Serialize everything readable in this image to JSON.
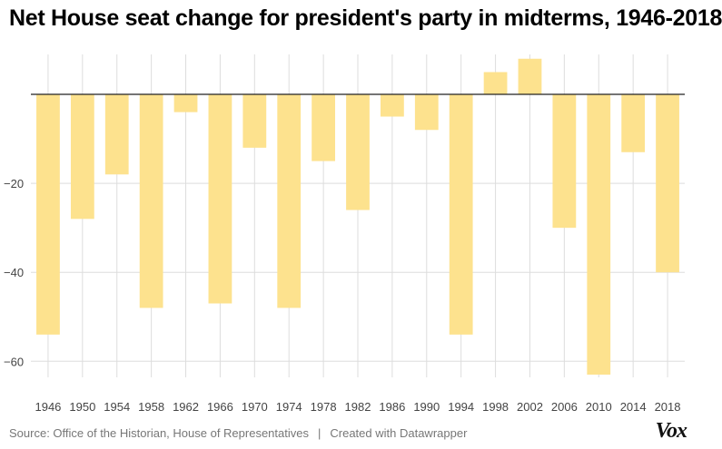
{
  "title": "Net House seat change for president's party in midterms, 1946-2018",
  "footer": {
    "source": "Source: Office of the Historian, House of Representatives",
    "separator": "|",
    "credit": "Created with Datawrapper"
  },
  "logo": "Vox",
  "colors": {
    "bar": "#fde28e",
    "grid": "#dddddd",
    "baseline": "#222222",
    "tick_text": "#444444"
  },
  "chart_data": {
    "type": "bar",
    "categories": [
      "1946",
      "1950",
      "1954",
      "1958",
      "1962",
      "1966",
      "1970",
      "1974",
      "1978",
      "1982",
      "1986",
      "1990",
      "1994",
      "1998",
      "2002",
      "2006",
      "2010",
      "2014",
      "2018"
    ],
    "values": [
      -54,
      -28,
      -18,
      -48,
      -4,
      -47,
      -12,
      -48,
      -15,
      -26,
      -5,
      -8,
      -54,
      5,
      8,
      -30,
      -63,
      -13,
      -40
    ],
    "title": "Net House seat change for president's party in midterms, 1946-2018",
    "xlabel": "",
    "ylabel": "",
    "ylim": [
      -63,
      8
    ],
    "y_ticks": [
      -20,
      -40,
      -60
    ],
    "y_tick_labels": [
      "−20",
      "−40",
      "−60"
    ],
    "grid": true
  }
}
